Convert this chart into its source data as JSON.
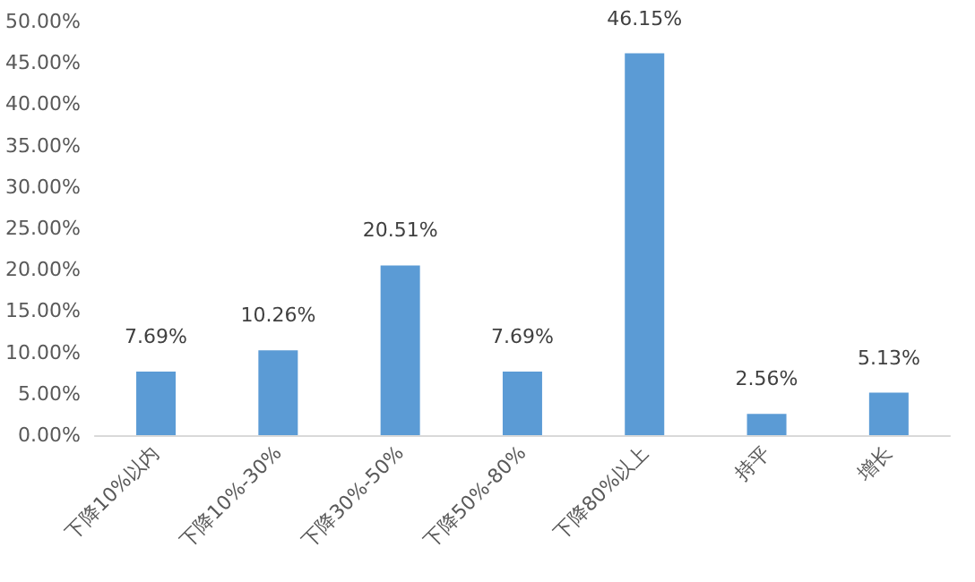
{
  "chart_data": {
    "type": "bar",
    "categories": [
      "下降10%以内",
      "下降10%-30%",
      "下降30%-50%",
      "下降50%-80%",
      "下降80%以上",
      "持平",
      "增长"
    ],
    "values": [
      7.69,
      10.26,
      20.51,
      7.69,
      46.15,
      2.56,
      5.13
    ],
    "value_labels": [
      "7.69%",
      "10.26%",
      "20.51%",
      "7.69%",
      "46.15%",
      "2.56%",
      "5.13%"
    ],
    "color": "#5b9bd5",
    "ylim": [
      0,
      50
    ],
    "yticks": [
      {
        "value": 0,
        "label": "0.00%"
      },
      {
        "value": 5,
        "label": "5.00%"
      },
      {
        "value": 10,
        "label": "10.00%"
      },
      {
        "value": 15,
        "label": "15.00%"
      },
      {
        "value": 20,
        "label": "20.00%"
      },
      {
        "value": 25,
        "label": "25.00%"
      },
      {
        "value": 30,
        "label": "30.00%"
      },
      {
        "value": 35,
        "label": "35.00%"
      },
      {
        "value": 40,
        "label": "40.00%"
      },
      {
        "value": 45,
        "label": "45.00%"
      },
      {
        "value": 50,
        "label": "50.00%"
      }
    ],
    "grid": false
  }
}
